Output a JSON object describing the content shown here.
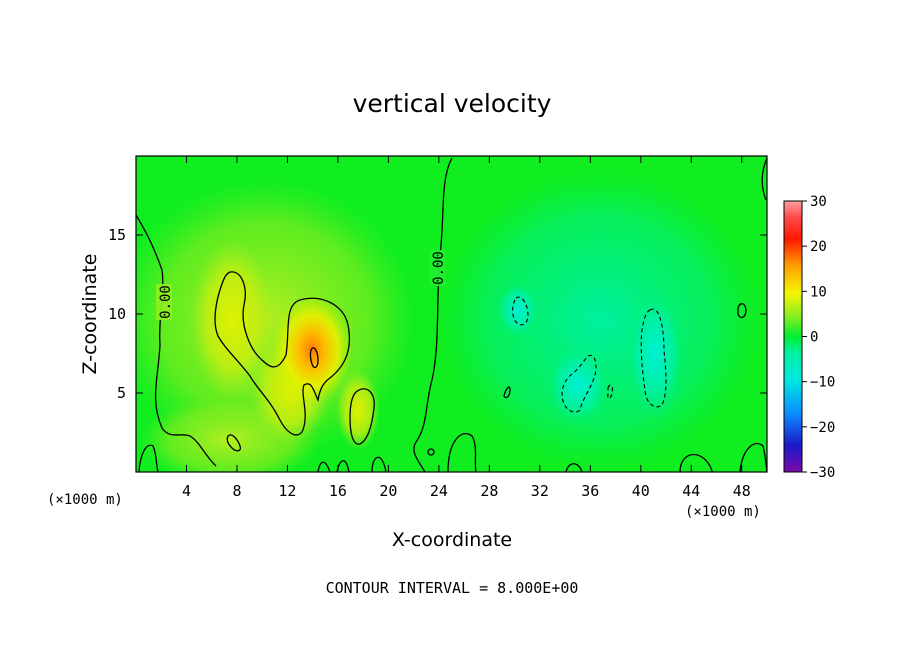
{
  "chart_data": {
    "type": "heatmap",
    "title": "vertical velocity",
    "xlabel": "X-coordinate",
    "ylabel": "Z-coordinate",
    "x_unit_label": "(×1000 m)",
    "x_unit_label_right": "(×1000 m)",
    "xlim": [
      0,
      50
    ],
    "ylim": [
      0,
      20
    ],
    "x_ticks": [
      "4",
      "8",
      "12",
      "16",
      "20",
      "24",
      "28",
      "32",
      "36",
      "40",
      "44",
      "48"
    ],
    "y_ticks": [
      "5",
      "10",
      "15"
    ],
    "contour_label": "0.00",
    "contour_label_2": "0.00",
    "footer": "CONTOUR INTERVAL = 8.000E+00",
    "colorbar": {
      "range": [
        -30,
        30
      ],
      "ticks": [
        "30",
        "20",
        "10",
        "0",
        "−10",
        "−20",
        "−30"
      ]
    },
    "features": [
      {
        "kind": "updraft",
        "x": 14,
        "z": 7.5,
        "value": 16
      },
      {
        "kind": "updraft",
        "x": 8.5,
        "z": 10,
        "value": 9
      },
      {
        "kind": "updraft",
        "x": 18,
        "z": 4,
        "value": 9
      },
      {
        "kind": "downdraft",
        "x": 41,
        "z": 8,
        "value": -9
      },
      {
        "kind": "downdraft",
        "x": 35,
        "z": 5.5,
        "value": -9
      },
      {
        "kind": "downdraft",
        "x": 30.5,
        "z": 10,
        "value": -8
      }
    ]
  }
}
